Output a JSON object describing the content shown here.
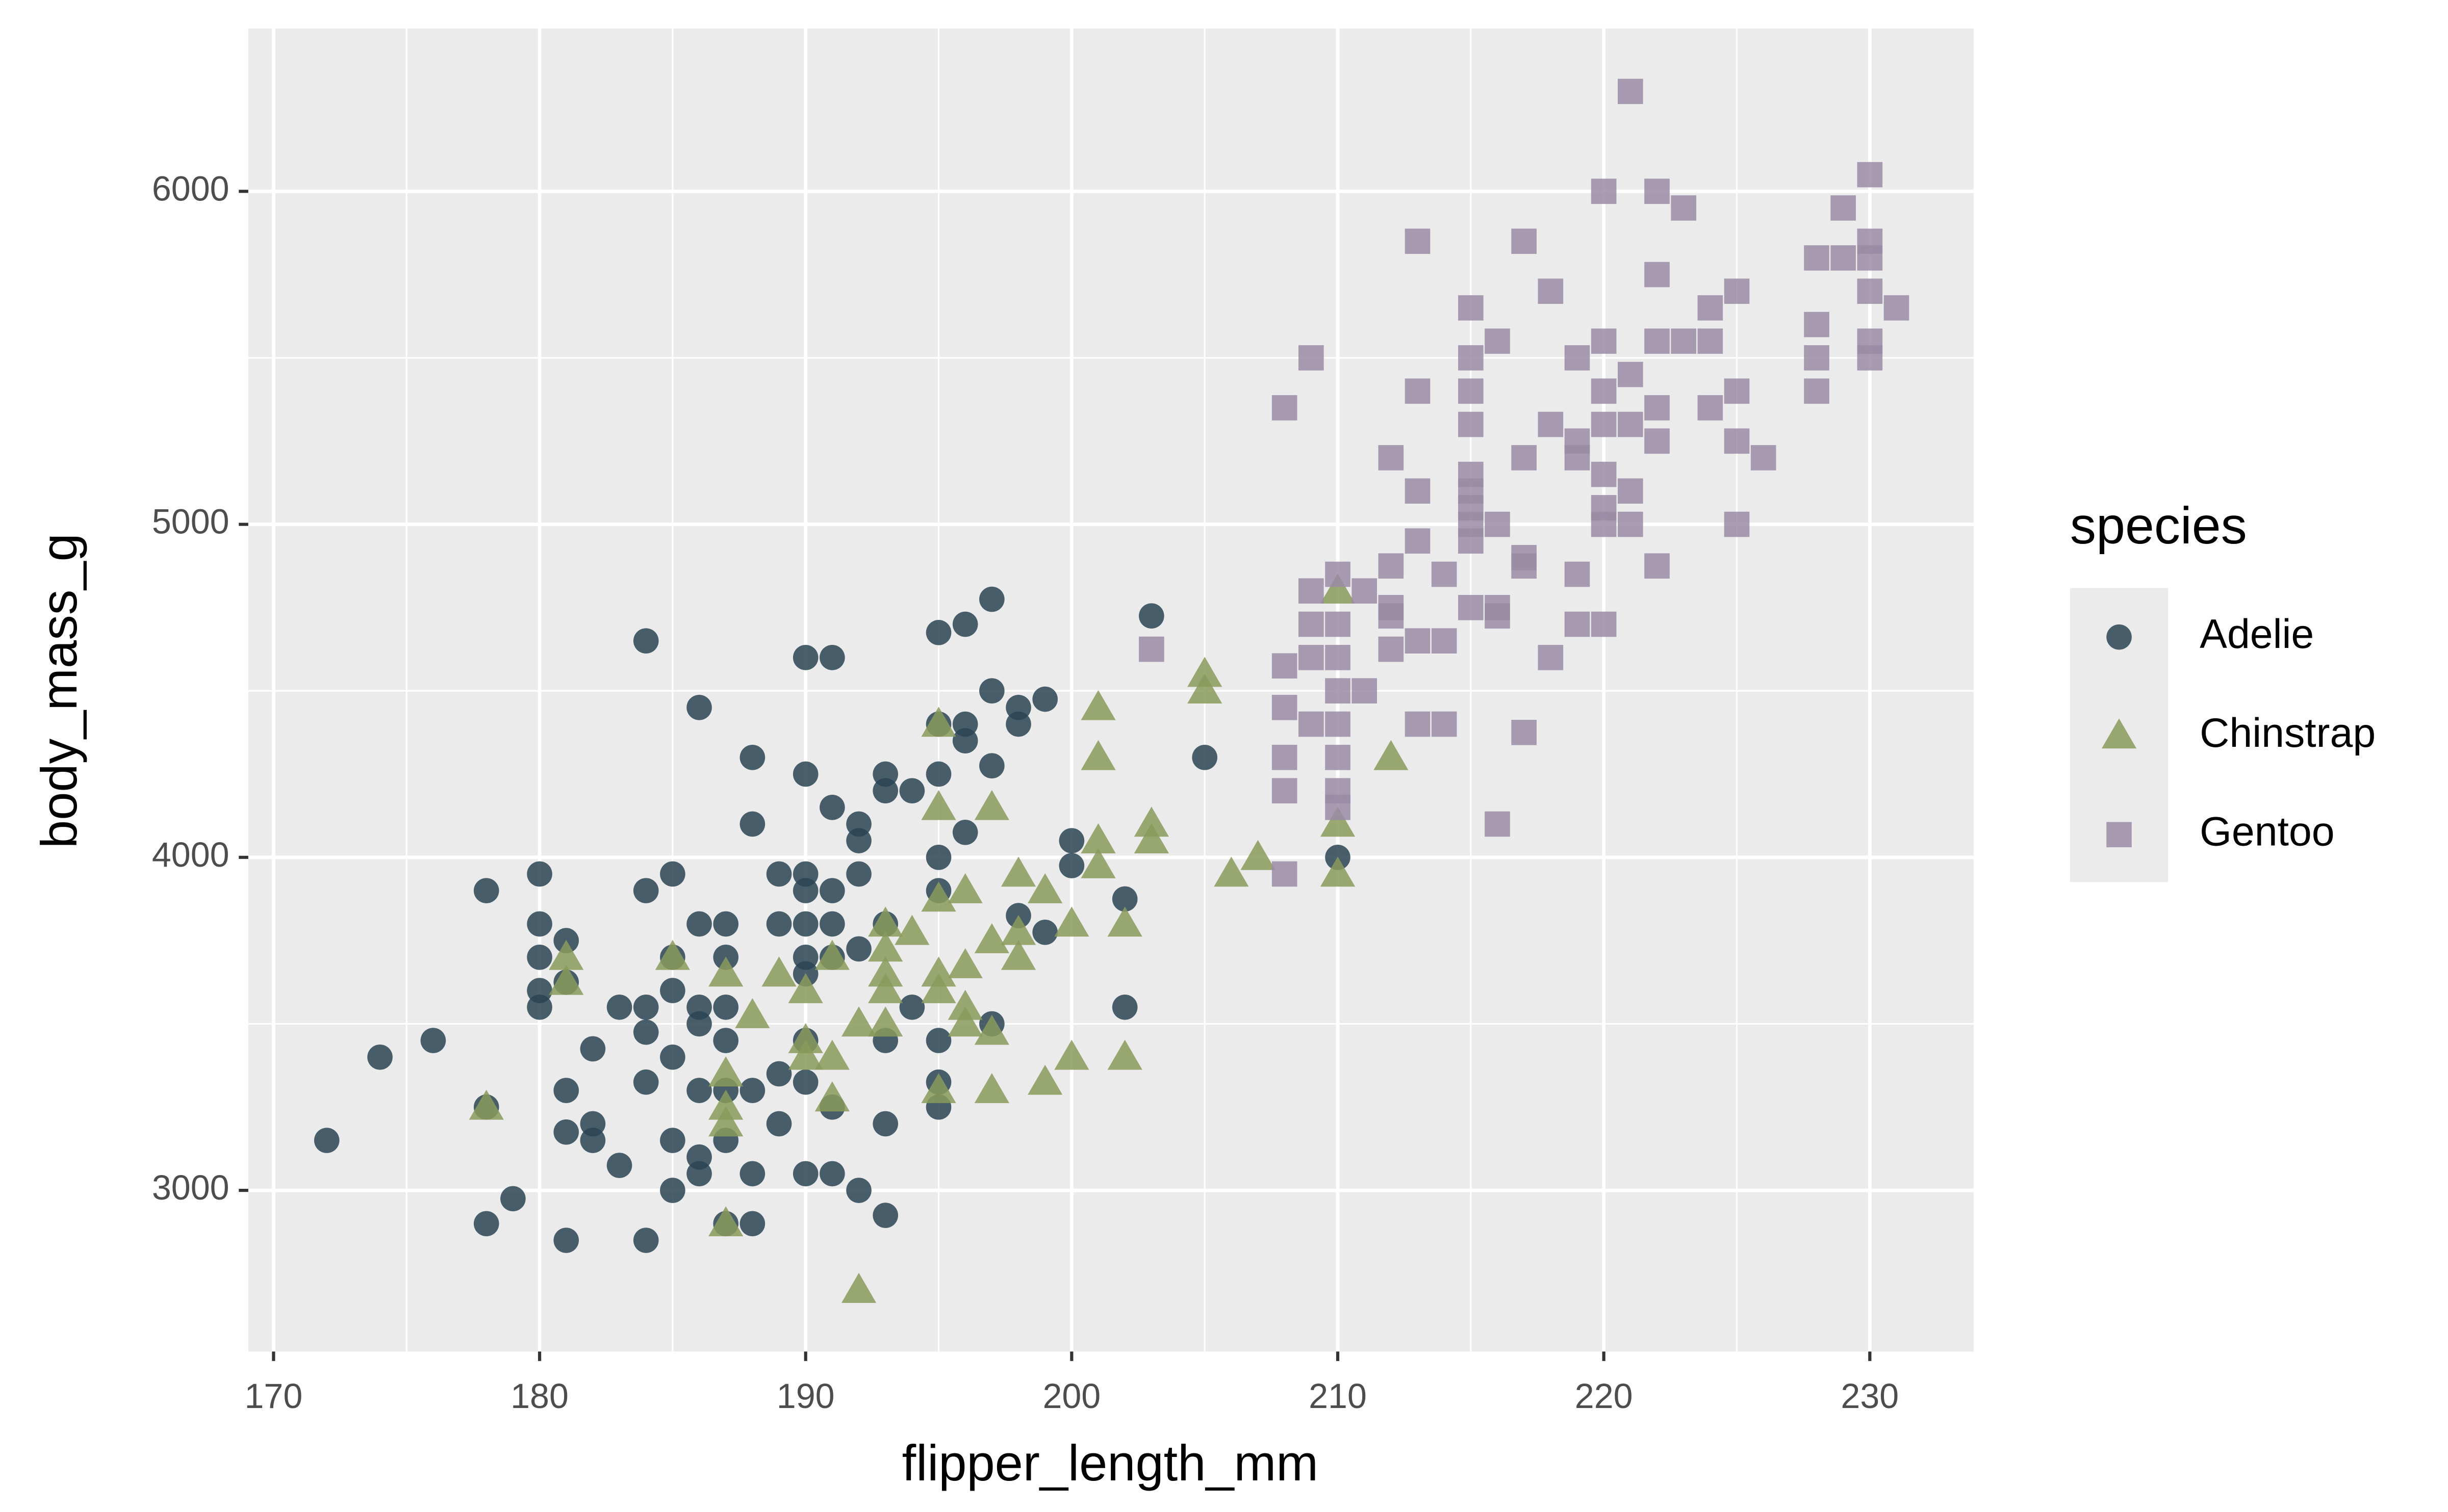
{
  "chart_data": {
    "type": "scatter",
    "x_label": "flipper_length_mm",
    "y_label": "body_mass_g",
    "legend_title": "species",
    "xlim": [
      169.05,
      233.9
    ],
    "ylim": [
      2516,
      6489
    ],
    "xticks": [
      170,
      180,
      190,
      200,
      210,
      220,
      230
    ],
    "yticks": [
      3000,
      4000,
      5000,
      6000
    ],
    "x_minor_breaks": [
      175,
      185,
      195,
      205,
      215,
      225
    ],
    "y_minor_breaks": [
      2500,
      3500,
      4500,
      5500
    ],
    "grid": true,
    "legend": "right",
    "series": [
      {
        "name": "Adelie",
        "color": "#2c4454",
        "shape": "circle",
        "x": [
          172,
          174,
          176,
          178,
          178,
          178,
          179,
          180,
          180,
          180,
          180,
          180,
          181,
          181,
          181,
          181,
          181,
          182,
          182,
          182,
          183,
          183,
          184,
          184,
          184,
          184,
          184,
          184,
          185,
          185,
          185,
          185,
          185,
          185,
          186,
          186,
          186,
          186,
          186,
          186,
          186,
          187,
          187,
          187,
          187,
          187,
          187,
          187,
          188,
          188,
          188,
          188,
          188,
          189,
          189,
          189,
          189,
          190,
          190,
          190,
          190,
          190,
          190,
          190,
          190,
          190,
          190,
          191,
          191,
          191,
          191,
          191,
          191,
          191,
          192,
          192,
          192,
          192,
          192,
          193,
          193,
          193,
          193,
          193,
          193,
          194,
          194,
          195,
          195,
          195,
          195,
          195,
          195,
          195,
          195,
          196,
          196,
          196,
          196,
          197,
          197,
          197,
          197,
          198,
          198,
          198,
          199,
          199,
          200,
          200,
          202,
          202,
          203,
          205,
          210
        ],
        "values": [
          3150,
          3400,
          3450,
          3250,
          2900,
          3900,
          2975,
          3950,
          3800,
          3700,
          3600,
          3550,
          3750,
          3625,
          3300,
          3175,
          2850,
          3200,
          3150,
          3425,
          3550,
          3075,
          4650,
          3900,
          3550,
          3475,
          3325,
          2850,
          3950,
          3700,
          3600,
          3400,
          3150,
          3000,
          4450,
          3800,
          3550,
          3500,
          3300,
          3100,
          3050,
          3800,
          3700,
          3550,
          3450,
          3300,
          3150,
          2900,
          4300,
          4100,
          3300,
          3050,
          2900,
          3950,
          3800,
          3350,
          3200,
          4600,
          4250,
          3950,
          3900,
          3800,
          3700,
          3650,
          3450,
          3325,
          3050,
          4600,
          4150,
          3900,
          3800,
          3700,
          3250,
          3050,
          4100,
          4050,
          3950,
          3725,
          3000,
          4250,
          4200,
          3800,
          3450,
          3200,
          2925,
          4200,
          3550,
          4675,
          4400,
          4250,
          4000,
          3900,
          3450,
          3325,
          3250,
          4700,
          4400,
          4350,
          4075,
          4775,
          4500,
          4275,
          3500,
          4450,
          4400,
          3825,
          4475,
          3775,
          4050,
          3975,
          3875,
          3550,
          4725,
          4300,
          4000
        ]
      },
      {
        "name": "Chinstrap",
        "color": "#8a9a5b",
        "shape": "triangle",
        "x": [
          178,
          181,
          181,
          185,
          187,
          187,
          187,
          187,
          187,
          188,
          189,
          190,
          190,
          190,
          191,
          191,
          191,
          192,
          192,
          193,
          193,
          193,
          193,
          193,
          194,
          195,
          195,
          195,
          195,
          195,
          195,
          196,
          196,
          196,
          196,
          197,
          197,
          197,
          197,
          198,
          198,
          198,
          199,
          199,
          200,
          200,
          201,
          201,
          201,
          201,
          202,
          202,
          203,
          203,
          205,
          205,
          206,
          207,
          210,
          210,
          210,
          212
        ],
        "values": [
          3250,
          3700,
          3625,
          3700,
          3650,
          3350,
          3250,
          3200,
          2900,
          3525,
          3650,
          3600,
          3450,
          3400,
          3700,
          3400,
          3275,
          3500,
          2700,
          3800,
          3725,
          3650,
          3600,
          3500,
          3775,
          4400,
          4150,
          3875,
          3650,
          3600,
          3300,
          3900,
          3550,
          3500,
          3675,
          4150,
          3750,
          3475,
          3300,
          3950,
          3700,
          3775,
          3900,
          3325,
          3800,
          3400,
          4450,
          4300,
          4050,
          3975,
          3800,
          3400,
          4100,
          4050,
          4550,
          4500,
          3950,
          4000,
          4800,
          4100,
          3950,
          4300
        ]
      },
      {
        "name": "Gentoo",
        "color": "#9a8ba6",
        "shape": "square",
        "x": [
          203,
          208,
          208,
          208,
          208,
          208,
          208,
          209,
          209,
          209,
          209,
          209,
          210,
          210,
          210,
          210,
          210,
          210,
          210,
          210,
          211,
          211,
          212,
          212,
          212,
          212,
          212,
          213,
          213,
          213,
          213,
          213,
          213,
          214,
          214,
          214,
          215,
          215,
          215,
          215,
          215,
          215,
          215,
          215,
          215,
          215,
          216,
          216,
          216,
          216,
          216,
          217,
          217,
          217,
          217,
          217,
          218,
          218,
          218,
          219,
          219,
          219,
          219,
          219,
          220,
          220,
          220,
          220,
          220,
          220,
          220,
          220,
          221,
          221,
          221,
          221,
          221,
          222,
          222,
          222,
          222,
          222,
          222,
          223,
          223,
          224,
          224,
          224,
          225,
          225,
          225,
          225,
          226,
          228,
          228,
          228,
          228,
          229,
          229,
          230,
          230,
          230,
          230,
          230,
          230,
          231
        ],
        "values": [
          4625,
          5350,
          4575,
          4450,
          4300,
          4200,
          3950,
          5500,
          4800,
          4700,
          4600,
          4400,
          4850,
          4700,
          4600,
          4400,
          4300,
          4200,
          4150,
          4500,
          4800,
          4500,
          5200,
          4875,
          4750,
          4725,
          4625,
          5850,
          5400,
          5100,
          4950,
          4650,
          4400,
          4850,
          4650,
          4400,
          5650,
          5500,
          5400,
          5300,
          5150,
          5100,
          5050,
          5000,
          4950,
          4750,
          5550,
          5000,
          4750,
          4725,
          4100,
          5850,
          5200,
          4900,
          4875,
          4375,
          5700,
          5300,
          4600,
          5500,
          5250,
          5200,
          4850,
          4700,
          6000,
          5550,
          5400,
          5300,
          5150,
          5050,
          5000,
          4700,
          6300,
          5450,
          5300,
          5100,
          5000,
          6000,
          5750,
          5550,
          5350,
          5250,
          4875,
          5950,
          5550,
          5650,
          5550,
          5350,
          5700,
          5400,
          5250,
          5000,
          5200,
          5800,
          5600,
          5500,
          5400,
          5950,
          5800,
          6050,
          5850,
          5800,
          5700,
          5550,
          5500,
          5650
        ]
      }
    ]
  }
}
